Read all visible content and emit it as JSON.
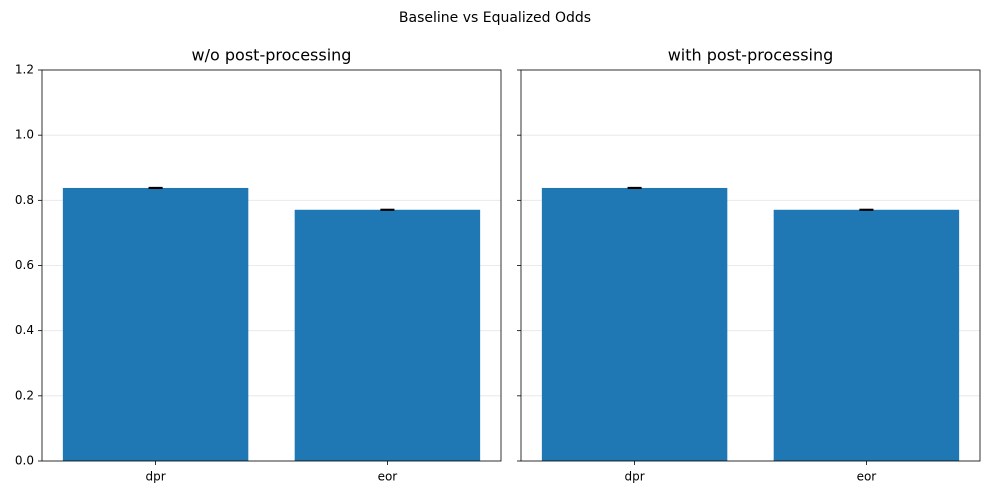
{
  "title": "Baseline vs Equalized Odds",
  "chart_data": [
    {
      "type": "bar",
      "title": "w/o post-processing",
      "categories": [
        "dpr",
        "eor"
      ],
      "values": [
        0.838,
        0.771
      ],
      "errors": [
        0.001,
        0.001
      ],
      "color": "#1f77b4",
      "ylim": [
        0,
        1.2
      ],
      "yticks": [
        {
          "value": 0,
          "label": "0.0"
        },
        0.2,
        0.4,
        0.6,
        0.8,
        {
          "value": 1,
          "label": "1.0"
        },
        1.2
      ],
      "grid": true,
      "ytick_labels": true
    },
    {
      "type": "bar",
      "title": "with post-processing",
      "categories": [
        "dpr",
        "eor"
      ],
      "values": [
        0.838,
        0.771
      ],
      "errors": [
        0.001,
        0.001
      ],
      "color": "#1f77b4",
      "ylim": [
        0,
        1.2
      ],
      "yticks": [
        {
          "value": 0,
          "label": "0.0"
        },
        0.2,
        0.4,
        0.6,
        0.8,
        {
          "value": 1,
          "label": "1.0"
        },
        1.2
      ],
      "grid": true,
      "ytick_labels": false
    }
  ]
}
